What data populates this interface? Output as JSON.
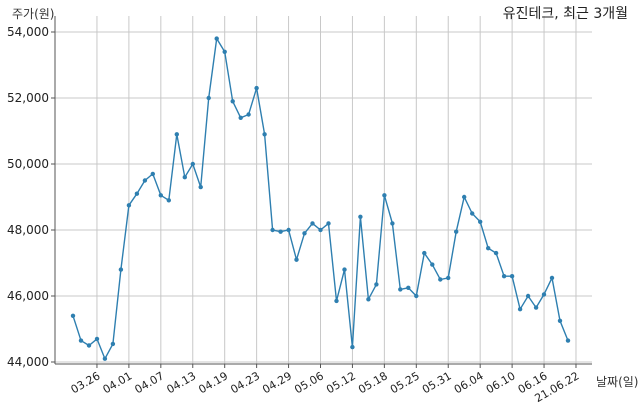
{
  "chart_data": {
    "type": "line",
    "title": "유진테크, 최근 3개월",
    "ylabel": "주가(원)",
    "xlabel": "날짜(일)",
    "ylim": [
      44000,
      54000
    ],
    "yticks": [
      44000,
      46000,
      48000,
      50000,
      52000,
      54000
    ],
    "ytick_labels": [
      "44,000",
      "46,000",
      "48,000",
      "50,000",
      "52,000",
      "54,000"
    ],
    "xtick_labels": [
      "03.26",
      "04.01",
      "04.07",
      "04.13",
      "04.19",
      "04.23",
      "04.29",
      "05.06",
      "05.12",
      "05.18",
      "05.25",
      "05.31",
      "06.04",
      "06.10",
      "06.16",
      "21.06.22"
    ],
    "xtick_index": [
      3,
      7,
      11,
      15,
      19,
      23,
      27,
      31,
      35,
      39,
      43,
      47,
      51,
      55,
      59,
      63
    ],
    "grid": true,
    "color": "#2e7fb0",
    "series": [
      {
        "values": [
          45400,
          44650,
          44500,
          44700,
          44100,
          44550,
          46800,
          48750,
          49100,
          49500,
          49700,
          49050,
          48900,
          50900,
          49600,
          50000,
          49300,
          52000,
          53800,
          53400,
          51900,
          51400,
          51500,
          52300,
          50900,
          48000,
          47950,
          48000,
          47100,
          47900,
          48200,
          48000,
          48200,
          45850,
          46800,
          44450,
          48400,
          45900,
          46350,
          49050,
          48200,
          46200,
          46250,
          46000,
          47300,
          46950,
          46500,
          46550,
          47950,
          49000,
          48500,
          48250,
          47450,
          47300,
          46600,
          46600,
          45600,
          46000,
          45650,
          46050,
          46550,
          45250,
          44650
        ]
      }
    ]
  }
}
